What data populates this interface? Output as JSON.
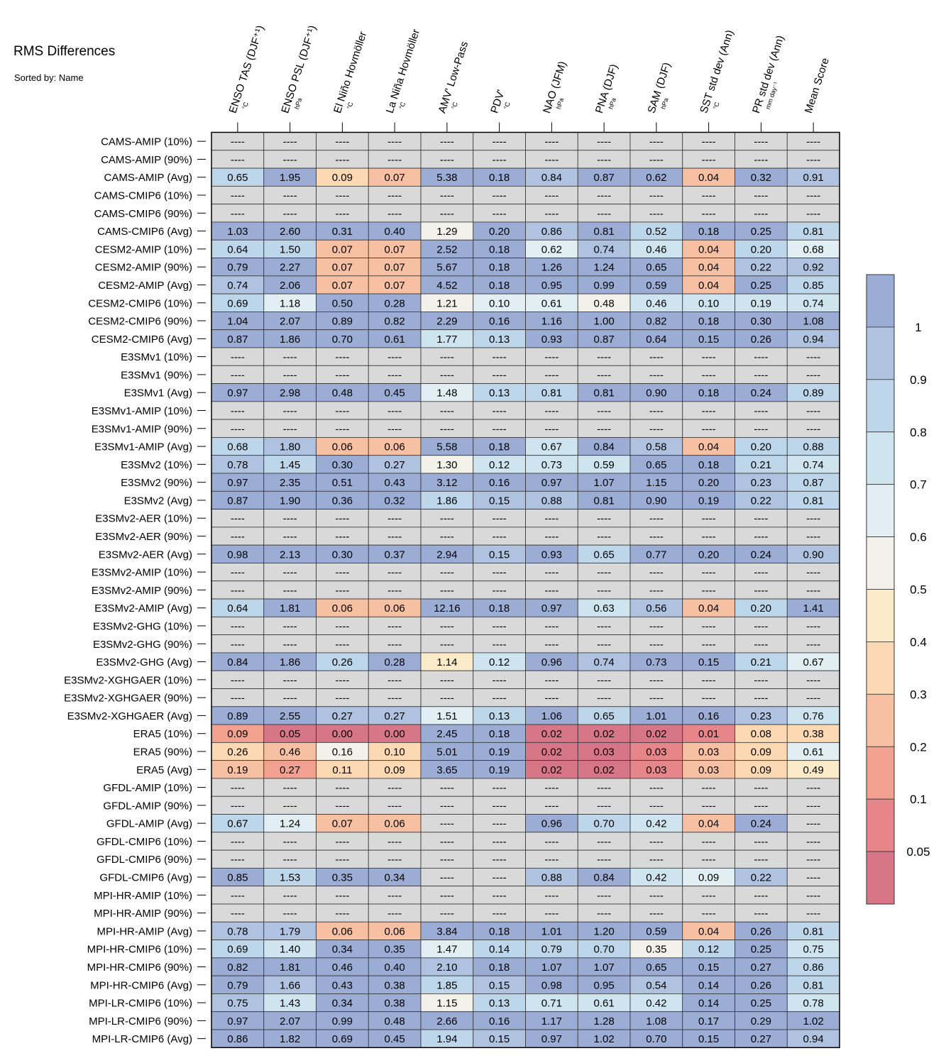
{
  "title": "RMS Differences",
  "subtitle": "Sorted by: Name",
  "chart_data": {
    "type": "heatmap",
    "missing_text": "----",
    "columns": [
      {
        "label": "ENSO TAS (DJF⁺¹)",
        "unit": "°C"
      },
      {
        "label": "ENSO PSL (DJF⁺¹)",
        "unit": "hPa"
      },
      {
        "label": "El Niño Hovmöller",
        "unit": "°C"
      },
      {
        "label": "La Niña Hovmöller",
        "unit": "°C"
      },
      {
        "label": "AMV' Low-Pass",
        "unit": "°C"
      },
      {
        "label": "PDV'",
        "unit": "°C"
      },
      {
        "label": "NAO (JFM)",
        "unit": "hPa"
      },
      {
        "label": "PNA (DJF)",
        "unit": "hPa"
      },
      {
        "label": "SAM (DJF)",
        "unit": "hPa"
      },
      {
        "label": "SST std dev (Ann)",
        "unit": "°C"
      },
      {
        "label": "PR std dev (Ann)",
        "unit": "mm day⁻¹"
      },
      {
        "label": "Mean Score",
        "unit": ""
      }
    ],
    "rows": [
      {
        "label": "CAMS-AMIP (10%)",
        "values": [
          null,
          null,
          null,
          null,
          null,
          null,
          null,
          null,
          null,
          null,
          null,
          null
        ]
      },
      {
        "label": "CAMS-AMIP (90%)",
        "values": [
          null,
          null,
          null,
          null,
          null,
          null,
          null,
          null,
          null,
          null,
          null,
          null
        ]
      },
      {
        "label": "CAMS-AMIP (Avg)",
        "values": [
          "0.65",
          "1.95",
          "0.09",
          "0.07",
          "5.38",
          "0.18",
          "0.84",
          "0.87",
          "0.62",
          "0.04",
          "0.32",
          "0.91"
        ]
      },
      {
        "label": "CAMS-CMIP6 (10%)",
        "values": [
          null,
          null,
          null,
          null,
          null,
          null,
          null,
          null,
          null,
          null,
          null,
          null
        ]
      },
      {
        "label": "CAMS-CMIP6 (90%)",
        "values": [
          null,
          null,
          null,
          null,
          null,
          null,
          null,
          null,
          null,
          null,
          null,
          null
        ]
      },
      {
        "label": "CAMS-CMIP6 (Avg)",
        "values": [
          "1.03",
          "2.60",
          "0.31",
          "0.40",
          "1.29",
          "0.20",
          "0.86",
          "0.81",
          "0.52",
          "0.18",
          "0.25",
          "0.81"
        ]
      },
      {
        "label": "CESM2-AMIP (10%)",
        "values": [
          "0.64",
          "1.50",
          "0.07",
          "0.07",
          "2.52",
          "0.18",
          "0.62",
          "0.74",
          "0.46",
          "0.04",
          "0.20",
          "0.68"
        ]
      },
      {
        "label": "CESM2-AMIP (90%)",
        "values": [
          "0.79",
          "2.27",
          "0.07",
          "0.07",
          "5.67",
          "0.18",
          "1.26",
          "1.24",
          "0.65",
          "0.04",
          "0.22",
          "0.92"
        ]
      },
      {
        "label": "CESM2-AMIP (Avg)",
        "values": [
          "0.74",
          "2.06",
          "0.07",
          "0.07",
          "4.52",
          "0.18",
          "0.95",
          "0.99",
          "0.59",
          "0.04",
          "0.25",
          "0.85"
        ]
      },
      {
        "label": "CESM2-CMIP6 (10%)",
        "values": [
          "0.69",
          "1.18",
          "0.50",
          "0.28",
          "1.21",
          "0.10",
          "0.61",
          "0.48",
          "0.46",
          "0.10",
          "0.19",
          "0.74"
        ]
      },
      {
        "label": "CESM2-CMIP6 (90%)",
        "values": [
          "1.04",
          "2.07",
          "0.89",
          "0.82",
          "2.29",
          "0.16",
          "1.16",
          "1.00",
          "0.82",
          "0.18",
          "0.30",
          "1.08"
        ]
      },
      {
        "label": "CESM2-CMIP6 (Avg)",
        "values": [
          "0.87",
          "1.86",
          "0.70",
          "0.61",
          "1.77",
          "0.13",
          "0.93",
          "0.87",
          "0.64",
          "0.15",
          "0.26",
          "0.94"
        ]
      },
      {
        "label": "E3SMv1 (10%)",
        "values": [
          null,
          null,
          null,
          null,
          null,
          null,
          null,
          null,
          null,
          null,
          null,
          null
        ]
      },
      {
        "label": "E3SMv1 (90%)",
        "values": [
          null,
          null,
          null,
          null,
          null,
          null,
          null,
          null,
          null,
          null,
          null,
          null
        ]
      },
      {
        "label": "E3SMv1 (Avg)",
        "values": [
          "0.97",
          "2.98",
          "0.48",
          "0.45",
          "1.48",
          "0.13",
          "0.81",
          "0.81",
          "0.90",
          "0.18",
          "0.24",
          "0.89"
        ]
      },
      {
        "label": "E3SMv1-AMIP (10%)",
        "values": [
          null,
          null,
          null,
          null,
          null,
          null,
          null,
          null,
          null,
          null,
          null,
          null
        ]
      },
      {
        "label": "E3SMv1-AMIP (90%)",
        "values": [
          null,
          null,
          null,
          null,
          null,
          null,
          null,
          null,
          null,
          null,
          null,
          null
        ]
      },
      {
        "label": "E3SMv1-AMIP (Avg)",
        "values": [
          "0.68",
          "1.80",
          "0.06",
          "0.06",
          "5.58",
          "0.18",
          "0.67",
          "0.84",
          "0.58",
          "0.04",
          "0.20",
          "0.88"
        ]
      },
      {
        "label": "E3SMv2 (10%)",
        "values": [
          "0.78",
          "1.45",
          "0.30",
          "0.27",
          "1.30",
          "0.12",
          "0.73",
          "0.59",
          "0.65",
          "0.18",
          "0.21",
          "0.74"
        ]
      },
      {
        "label": "E3SMv2 (90%)",
        "values": [
          "0.97",
          "2.35",
          "0.51",
          "0.43",
          "3.12",
          "0.16",
          "0.97",
          "1.07",
          "1.15",
          "0.20",
          "0.23",
          "0.87"
        ]
      },
      {
        "label": "E3SMv2 (Avg)",
        "values": [
          "0.87",
          "1.90",
          "0.36",
          "0.32",
          "1.86",
          "0.15",
          "0.88",
          "0.81",
          "0.90",
          "0.19",
          "0.22",
          "0.81"
        ]
      },
      {
        "label": "E3SMv2-AER (10%)",
        "values": [
          null,
          null,
          null,
          null,
          null,
          null,
          null,
          null,
          null,
          null,
          null,
          null
        ]
      },
      {
        "label": "E3SMv2-AER (90%)",
        "values": [
          null,
          null,
          null,
          null,
          null,
          null,
          null,
          null,
          null,
          null,
          null,
          null
        ]
      },
      {
        "label": "E3SMv2-AER (Avg)",
        "values": [
          "0.98",
          "2.13",
          "0.30",
          "0.37",
          "2.94",
          "0.15",
          "0.93",
          "0.65",
          "0.77",
          "0.20",
          "0.24",
          "0.90"
        ]
      },
      {
        "label": "E3SMv2-AMIP (10%)",
        "values": [
          null,
          null,
          null,
          null,
          null,
          null,
          null,
          null,
          null,
          null,
          null,
          null
        ]
      },
      {
        "label": "E3SMv2-AMIP (90%)",
        "values": [
          null,
          null,
          null,
          null,
          null,
          null,
          null,
          null,
          null,
          null,
          null,
          null
        ]
      },
      {
        "label": "E3SMv2-AMIP (Avg)",
        "values": [
          "0.64",
          "1.81",
          "0.06",
          "0.06",
          "12.16",
          "0.18",
          "0.97",
          "0.63",
          "0.56",
          "0.04",
          "0.20",
          "1.41"
        ]
      },
      {
        "label": "E3SMv2-GHG (10%)",
        "values": [
          null,
          null,
          null,
          null,
          null,
          null,
          null,
          null,
          null,
          null,
          null,
          null
        ]
      },
      {
        "label": "E3SMv2-GHG (90%)",
        "values": [
          null,
          null,
          null,
          null,
          null,
          null,
          null,
          null,
          null,
          null,
          null,
          null
        ]
      },
      {
        "label": "E3SMv2-GHG (Avg)",
        "values": [
          "0.84",
          "1.86",
          "0.26",
          "0.28",
          "1.14",
          "0.12",
          "0.96",
          "0.74",
          "0.73",
          "0.15",
          "0.21",
          "0.67"
        ]
      },
      {
        "label": "E3SMv2-XGHGAER (10%)",
        "values": [
          null,
          null,
          null,
          null,
          null,
          null,
          null,
          null,
          null,
          null,
          null,
          null
        ]
      },
      {
        "label": "E3SMv2-XGHGAER (90%)",
        "values": [
          null,
          null,
          null,
          null,
          null,
          null,
          null,
          null,
          null,
          null,
          null,
          null
        ]
      },
      {
        "label": "E3SMv2-XGHGAER (Avg)",
        "values": [
          "0.89",
          "2.55",
          "0.27",
          "0.27",
          "1.51",
          "0.13",
          "1.06",
          "0.65",
          "1.01",
          "0.16",
          "0.23",
          "0.76"
        ]
      },
      {
        "label": "ERA5 (10%)",
        "values": [
          "0.09",
          "0.05",
          "0.00",
          "0.00",
          "2.45",
          "0.18",
          "0.02",
          "0.02",
          "0.02",
          "0.01",
          "0.08",
          "0.38"
        ]
      },
      {
        "label": "ERA5 (90%)",
        "values": [
          "0.26",
          "0.46",
          "0.16",
          "0.10",
          "5.01",
          "0.19",
          "0.02",
          "0.03",
          "0.03",
          "0.03",
          "0.09",
          "0.61"
        ]
      },
      {
        "label": "ERA5 (Avg)",
        "values": [
          "0.19",
          "0.27",
          "0.11",
          "0.09",
          "3.65",
          "0.19",
          "0.02",
          "0.02",
          "0.03",
          "0.03",
          "0.09",
          "0.49"
        ]
      },
      {
        "label": "GFDL-AMIP (10%)",
        "values": [
          null,
          null,
          null,
          null,
          null,
          null,
          null,
          null,
          null,
          null,
          null,
          null
        ]
      },
      {
        "label": "GFDL-AMIP (90%)",
        "values": [
          null,
          null,
          null,
          null,
          null,
          null,
          null,
          null,
          null,
          null,
          null,
          null
        ]
      },
      {
        "label": "GFDL-AMIP (Avg)",
        "values": [
          "0.67",
          "1.24",
          "0.07",
          "0.06",
          null,
          null,
          "0.96",
          "0.70",
          "0.42",
          "0.04",
          "0.24",
          null
        ]
      },
      {
        "label": "GFDL-CMIP6 (10%)",
        "values": [
          null,
          null,
          null,
          null,
          null,
          null,
          null,
          null,
          null,
          null,
          null,
          null
        ]
      },
      {
        "label": "GFDL-CMIP6 (90%)",
        "values": [
          null,
          null,
          null,
          null,
          null,
          null,
          null,
          null,
          null,
          null,
          null,
          null
        ]
      },
      {
        "label": "GFDL-CMIP6 (Avg)",
        "values": [
          "0.85",
          "1.53",
          "0.35",
          "0.34",
          null,
          null,
          "0.88",
          "0.84",
          "0.42",
          "0.09",
          "0.22",
          null
        ]
      },
      {
        "label": "MPI-HR-AMIP (10%)",
        "values": [
          null,
          null,
          null,
          null,
          null,
          null,
          null,
          null,
          null,
          null,
          null,
          null
        ]
      },
      {
        "label": "MPI-HR-AMIP (90%)",
        "values": [
          null,
          null,
          null,
          null,
          null,
          null,
          null,
          null,
          null,
          null,
          null,
          null
        ]
      },
      {
        "label": "MPI-HR-AMIP (Avg)",
        "values": [
          "0.78",
          "1.79",
          "0.06",
          "0.06",
          "3.84",
          "0.18",
          "1.01",
          "1.20",
          "0.59",
          "0.04",
          "0.26",
          "0.81"
        ]
      },
      {
        "label": "MPI-HR-CMIP6 (10%)",
        "values": [
          "0.69",
          "1.40",
          "0.34",
          "0.35",
          "1.47",
          "0.14",
          "0.79",
          "0.70",
          "0.35",
          "0.12",
          "0.25",
          "0.75"
        ]
      },
      {
        "label": "MPI-HR-CMIP6 (90%)",
        "values": [
          "0.82",
          "1.81",
          "0.46",
          "0.40",
          "2.10",
          "0.18",
          "1.07",
          "1.07",
          "0.65",
          "0.15",
          "0.27",
          "0.86"
        ]
      },
      {
        "label": "MPI-HR-CMIP6 (Avg)",
        "values": [
          "0.79",
          "1.66",
          "0.43",
          "0.38",
          "1.85",
          "0.15",
          "0.98",
          "0.95",
          "0.54",
          "0.14",
          "0.26",
          "0.81"
        ]
      },
      {
        "label": "MPI-LR-CMIP6 (10%)",
        "values": [
          "0.75",
          "1.43",
          "0.34",
          "0.38",
          "1.15",
          "0.13",
          "0.71",
          "0.61",
          "0.42",
          "0.14",
          "0.25",
          "0.78"
        ]
      },
      {
        "label": "MPI-LR-CMIP6 (90%)",
        "values": [
          "0.97",
          "2.07",
          "0.99",
          "0.48",
          "2.66",
          "0.16",
          "1.17",
          "1.28",
          "1.08",
          "0.17",
          "0.29",
          "1.02"
        ]
      },
      {
        "label": "MPI-LR-CMIP6 (Avg)",
        "values": [
          "0.86",
          "1.82",
          "0.69",
          "0.45",
          "1.94",
          "0.15",
          "0.97",
          "1.02",
          "0.70",
          "0.15",
          "0.27",
          "0.94"
        ]
      }
    ],
    "colorbar": {
      "ticks": [
        "1",
        "0.9",
        "0.8",
        "0.7",
        "0.6",
        "0.5",
        "0.4",
        "0.3",
        "0.2",
        "0.1",
        "0.05"
      ],
      "bins_high_to_low": [
        "#9bacd5",
        "#afc3e0",
        "#bdd6e9",
        "#cee5ef",
        "#e1eff4",
        "#f3f2ea",
        "#fcebc9",
        "#fcd8b3",
        "#f8c0a2",
        "#f2a190",
        "#e6868a",
        "#d67686"
      ]
    },
    "missing_color": "#d9d9d9"
  }
}
